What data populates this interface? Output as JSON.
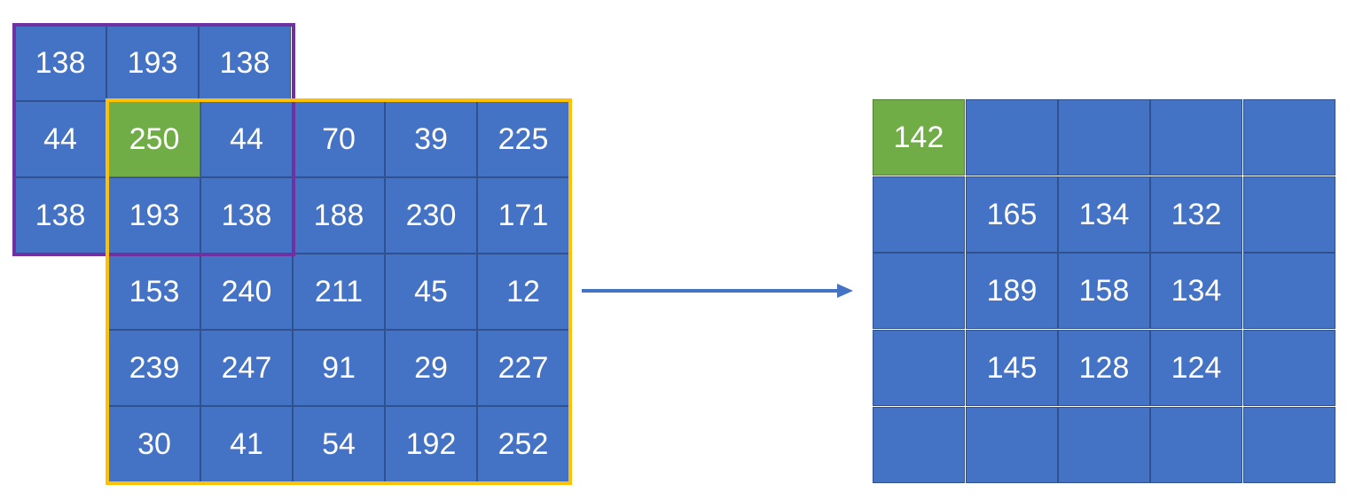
{
  "padded_strip": {
    "top_row": [
      "138",
      "193",
      "138"
    ],
    "left_column": [
      "44",
      "138"
    ]
  },
  "input_grid": [
    [
      "250",
      "44",
      "70",
      "39",
      "225"
    ],
    [
      "193",
      "138",
      "188",
      "230",
      "171"
    ],
    [
      "153",
      "240",
      "211",
      "45",
      "12"
    ],
    [
      "239",
      "247",
      "91",
      "29",
      "227"
    ],
    [
      "30",
      "41",
      "54",
      "192",
      "252"
    ]
  ],
  "output_grid": [
    [
      "142",
      "",
      "",
      "",
      ""
    ],
    [
      "",
      "165",
      "134",
      "132",
      ""
    ],
    [
      "",
      "189",
      "158",
      "134",
      ""
    ],
    [
      "",
      "145",
      "128",
      "124",
      ""
    ],
    [
      "",
      "",
      "",
      "",
      ""
    ]
  ],
  "highlighted_input_cell": [
    0,
    0
  ],
  "highlighted_output_cell": [
    0,
    0
  ],
  "colors": {
    "cell": "#4472c4",
    "cell_border": "#2f528f",
    "highlight": "#70ad47",
    "window_frame": "#7030a0",
    "image_frame": "#ffc000",
    "arrow": "#4472c4",
    "text": "#ffffff"
  }
}
